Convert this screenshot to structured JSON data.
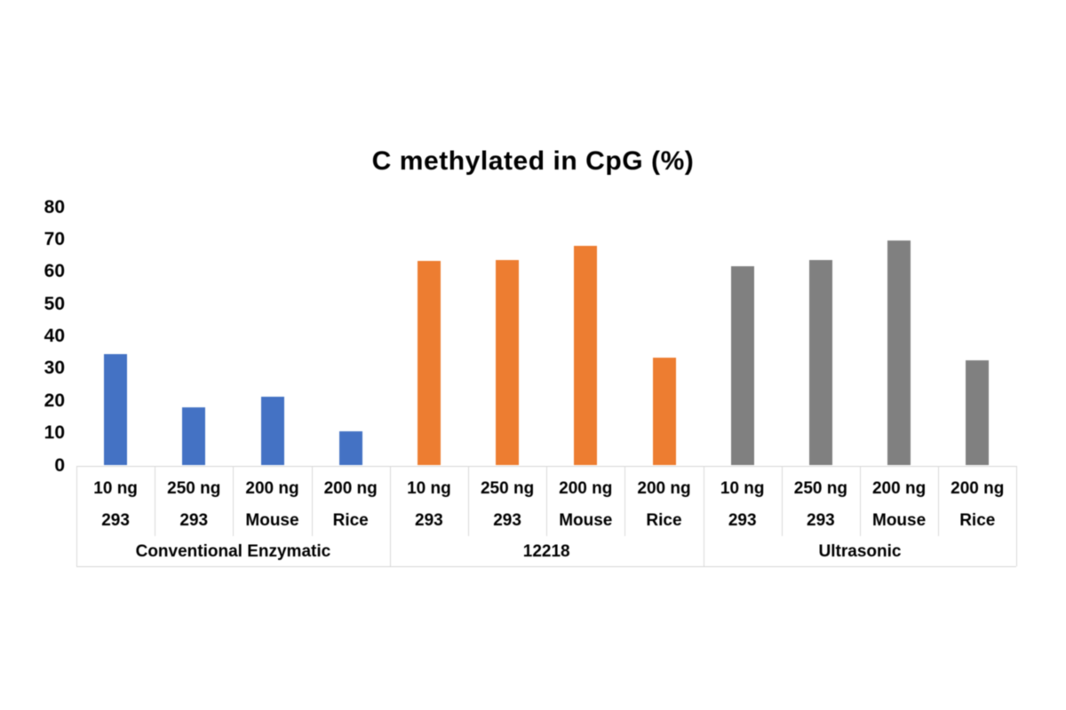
{
  "chart_data": {
    "type": "bar",
    "title": "C methylated in CpG (%)",
    "ylabel": "",
    "xlabel": "",
    "ylim": [
      0,
      80
    ],
    "yticks": [
      0,
      10,
      20,
      30,
      40,
      50,
      60,
      70,
      80
    ],
    "grid": false,
    "legend": "none",
    "category_rows": [
      "amount",
      "sample"
    ],
    "groups": [
      {
        "label": "Conventional Enzymatic",
        "color": "#4472c4",
        "bars": [
          {
            "amount": "10 ng",
            "sample": "293",
            "value": 34.4
          },
          {
            "amount": "250 ng",
            "sample": "293",
            "value": 18.0
          },
          {
            "amount": "200 ng",
            "sample": "Mouse",
            "value": 21.2
          },
          {
            "amount": "200 ng",
            "sample": "Rice",
            "value": 10.6
          }
        ]
      },
      {
        "label": "12218",
        "color": "#ed7d31",
        "bars": [
          {
            "amount": "10 ng",
            "sample": "293",
            "value": 63.4
          },
          {
            "amount": "250 ng",
            "sample": "293",
            "value": 63.6
          },
          {
            "amount": "200 ng",
            "sample": "Mouse",
            "value": 68.0
          },
          {
            "amount": "200 ng",
            "sample": "Rice",
            "value": 33.3
          }
        ]
      },
      {
        "label": "Ultrasonic",
        "color": "#808080",
        "bars": [
          {
            "amount": "10 ng",
            "sample": "293",
            "value": 61.8
          },
          {
            "amount": "250 ng",
            "sample": "293",
            "value": 63.6
          },
          {
            "amount": "200 ng",
            "sample": "Mouse",
            "value": 69.6
          },
          {
            "amount": "200 ng",
            "sample": "Rice",
            "value": 32.7
          }
        ]
      }
    ],
    "colors": {
      "series_blue": "#4472c4",
      "series_orange": "#ed7d31",
      "series_gray": "#808080",
      "axis_line": "#d9d9d9",
      "text": "#000000",
      "background": "#ffffff"
    }
  }
}
